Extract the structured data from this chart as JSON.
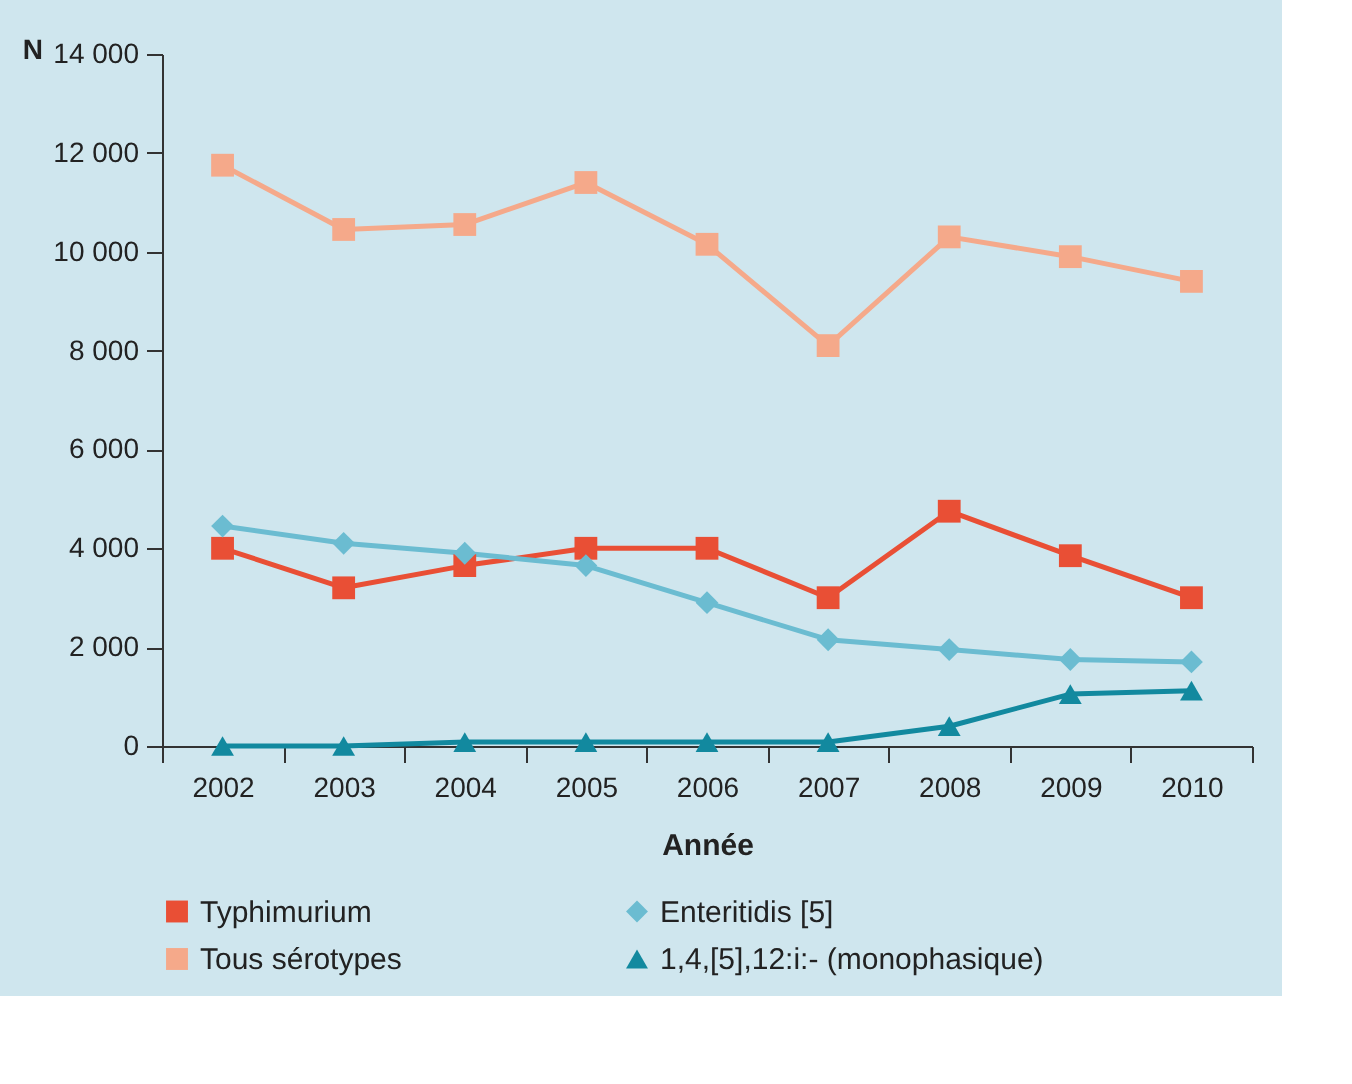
{
  "chart_data": {
    "type": "line",
    "xlabel": "Année",
    "ylabel": "N",
    "categories": [
      "2002",
      "2003",
      "2004",
      "2005",
      "2006",
      "2007",
      "2008",
      "2009",
      "2010"
    ],
    "series": [
      {
        "name": "Typhimurium",
        "color": "#e94f35",
        "marker": "square",
        "values": [
          4000,
          3200,
          3650,
          4000,
          4000,
          3000,
          4750,
          3850,
          3000
        ]
      },
      {
        "name": "Enteritidis [5]",
        "color": "#6bbcd1",
        "marker": "diamond",
        "values": [
          4450,
          4100,
          3900,
          3650,
          2900,
          2150,
          1950,
          1750,
          1700
        ]
      },
      {
        "name": "Tous sérotypes",
        "color": "#f5a98a",
        "marker": "square",
        "values": [
          11750,
          10450,
          10550,
          11400,
          10150,
          8100,
          10300,
          9900,
          9400
        ]
      },
      {
        "name": "1,4,[5],12:i:- (monophasique)",
        "color": "#12899f",
        "marker": "triangle",
        "values": [
          0,
          0,
          80,
          80,
          80,
          80,
          400,
          1050,
          1120
        ]
      }
    ],
    "ylim": [
      0,
      14000
    ],
    "yticks": [
      {
        "value": 0,
        "label": "0"
      },
      {
        "value": 2000,
        "label": "2 000"
      },
      {
        "value": 4000,
        "label": "4 000"
      },
      {
        "value": 6000,
        "label": "6 000"
      },
      {
        "value": 8000,
        "label": "8 000"
      },
      {
        "value": 10000,
        "label": "10 000"
      },
      {
        "value": 12000,
        "label": "12 000"
      },
      {
        "value": 14000,
        "label": "14 000"
      }
    ],
    "grid": false,
    "legend": "bottom",
    "line_style": "solid"
  }
}
